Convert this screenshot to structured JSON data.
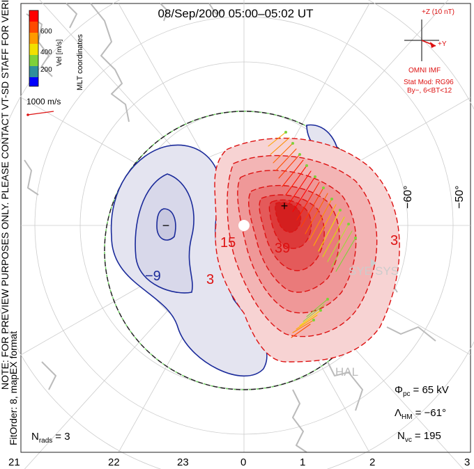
{
  "title": "08/Sep/2000 05:00–05:02 UT",
  "mlt_label": "MLT coordinates",
  "colorbar": {
    "label": "Vel [m/s]",
    "ticks": [
      "600",
      "400",
      "200"
    ],
    "colors": [
      "#0000ff",
      "#2f8f9c",
      "#7fd13a",
      "#f2e000",
      "#ff9a00",
      "#ff4a00",
      "#ff0000"
    ]
  },
  "scale_label": "1000 m/s",
  "note": "NOTE: FOR PREVIEW PURPOSES ONLY. PLEASE CONTACT VT-SD STAFF FOR VERIFICATION.",
  "fitorder": "FitOrder: 8, mapEX format",
  "imf": {
    "z_label": "+Z (10 nT)",
    "y_label": "+Y",
    "source": "OMNI IMF",
    "stat_mod": "Stat Mod: RG96",
    "condition": "By−, 6<BT<12"
  },
  "lat_labels": [
    "−60°",
    "−50°"
  ],
  "contour_labels": [
    "−9",
    "−",
    "15",
    "39",
    "3",
    "3"
  ],
  "stations": [
    "SYE",
    "SYS",
    "HAL"
  ],
  "stats": {
    "phi_label": "Φ",
    "phi_sub": "pc",
    "phi_value": "= 65 kV",
    "lambda_label": "Λ",
    "lambda_sub": "HM",
    "lambda_value": "= −61°",
    "nvc_label": "N",
    "nvc_sub": "vc",
    "nvc_value": "= 195",
    "nrads_label": "N",
    "nrads_sub": "rads",
    "nrads_value": "= 3"
  },
  "mlt_ticks": [
    "21",
    "22",
    "23",
    "0",
    "1",
    "2",
    "3"
  ],
  "colors": {
    "positive_contour": "#dd1111",
    "negative_contour": "#1a2a9a",
    "coast": "#bbbbbb",
    "heppner_maynard": "#6cd05c"
  }
}
